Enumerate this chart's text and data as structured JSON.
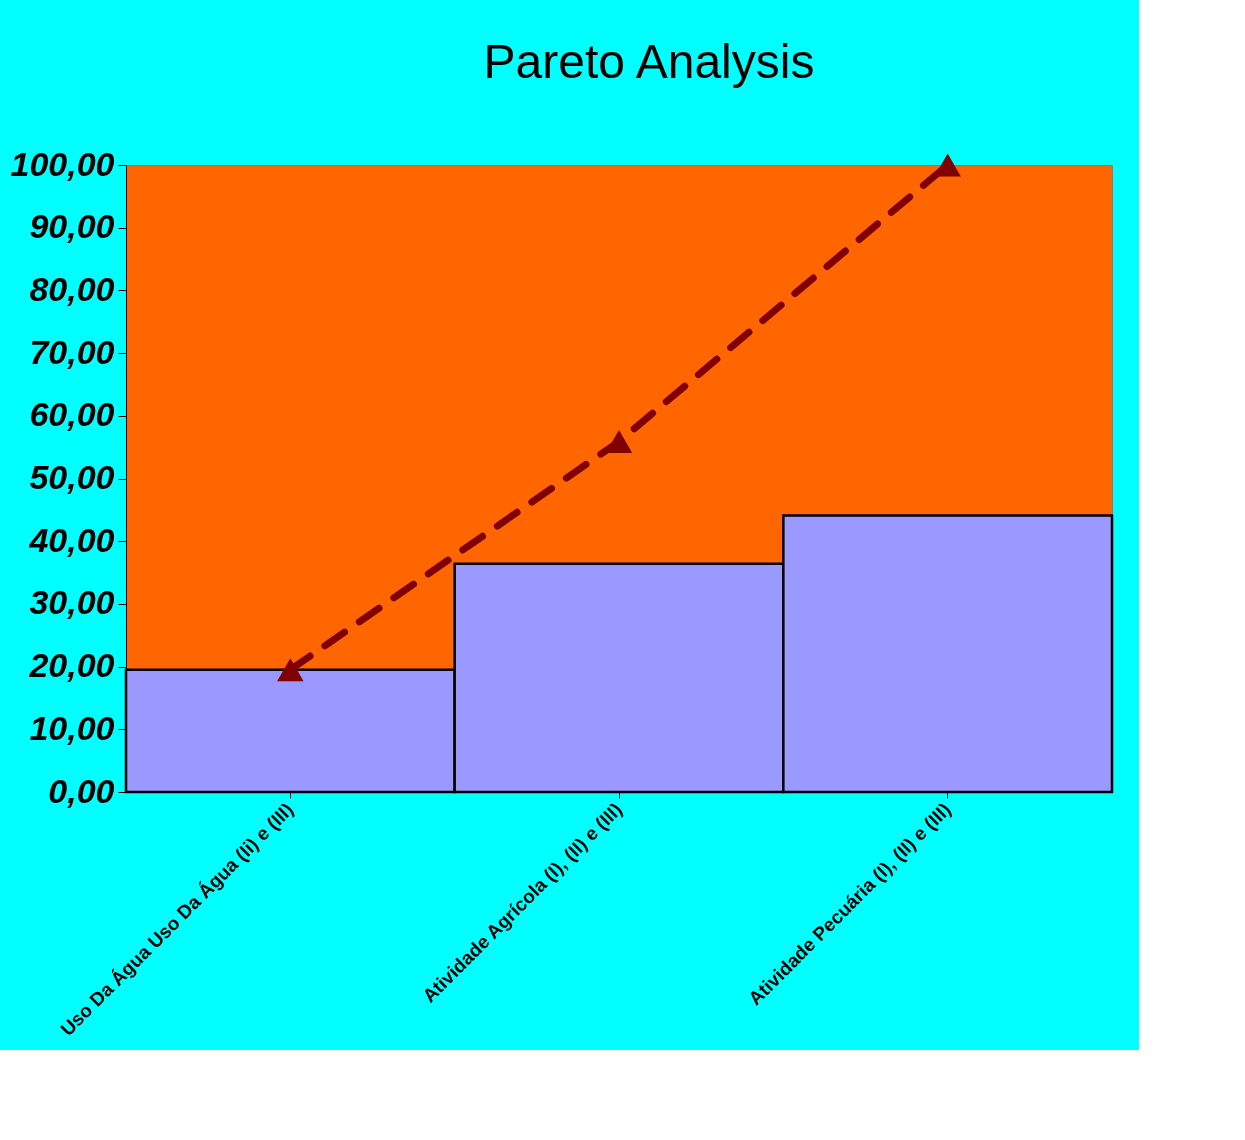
{
  "chart_data": {
    "type": "bar",
    "title": "Pareto Analysis",
    "categories": [
      "Uso Da Água Uso Da Água (Ii) e (III)",
      "Atividade Agrícola (I), (II) e (III)",
      "Atividade Pecuária (I), (II) e (III)"
    ],
    "series": [
      {
        "color": "#9999ff",
        "values": [
          19.5,
          36.4,
          44.1
        ]
      },
      {
        "type": "line",
        "color": "#800000",
        "values": [
          19.5,
          55.9,
          100.0
        ],
        "marker": "triangle",
        "line_style": "dashed"
      }
    ],
    "ylim": [
      0,
      100
    ],
    "yticks": [
      {
        "value": 0,
        "label": "0,00"
      },
      {
        "value": 10,
        "label": "10,00"
      },
      {
        "value": 20,
        "label": "20,00"
      },
      {
        "value": 30,
        "label": "30,00"
      },
      {
        "value": 40,
        "label": "40,00"
      },
      {
        "value": 50,
        "label": "50,00"
      },
      {
        "value": 60,
        "label": "60,00"
      },
      {
        "value": 70,
        "label": "70,00"
      },
      {
        "value": 80,
        "label": "80,00"
      },
      {
        "value": 90,
        "label": "90,00"
      },
      {
        "value": 100,
        "label": "100,00"
      }
    ],
    "grid": false
  }
}
